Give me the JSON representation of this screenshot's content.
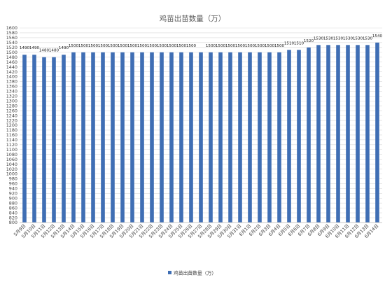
{
  "chart_data": {
    "type": "bar",
    "title": "鸡苗出苗数量（万）",
    "xlabel": "",
    "ylabel": "",
    "ylim": [
      800,
      1600
    ],
    "ytick_step": 20,
    "grid": true,
    "legend_position": "bottom",
    "categories": [
      "5月9日",
      "5月10日",
      "5月11日",
      "5月12日",
      "5月13日",
      "5月14日",
      "5月15日",
      "5月16日",
      "5月17日",
      "5月18日",
      "5月19日",
      "5月20日",
      "5月21日",
      "5月22日",
      "5月23日",
      "5月24日",
      "5月25日",
      "5月26日",
      "5月27日",
      "5月28日",
      "5月29日",
      "5月30日",
      "5月31日",
      "6月1日",
      "6月2日",
      "6月3日",
      "6月4日",
      "6月5日",
      "6月6日",
      "6月7日",
      "6月8日",
      "6月9日",
      "6月10日",
      "6月11日",
      "6月12日",
      "6月13日",
      "6月14日"
    ],
    "series": [
      {
        "name": "鸡苗出苗数量（万）",
        "color": "#3f6eb4",
        "values": [
          1490,
          1490,
          1480,
          1480,
          1490,
          1500,
          1500,
          1500,
          1500,
          1500,
          1500,
          1500,
          1500,
          1500,
          1500,
          1500,
          1500,
          1500,
          1500,
          1500,
          1500,
          1500,
          1500,
          1500,
          1500,
          1500,
          1500,
          1510,
          1510,
          1520,
          1530,
          1530,
          1530,
          1530,
          1530,
          1530,
          1540
        ]
      }
    ],
    "data_labels": [
      "1490",
      "1490",
      "1480",
      "1480",
      "1490",
      "1500",
      "1500",
      "1500",
      "1500",
      "1500",
      "1500",
      "1500",
      "1500",
      "1500",
      "1500",
      "1500",
      "1500",
      "1500",
      "",
      "1500",
      "1500",
      "1500",
      "1500",
      "1500",
      "1500",
      "1500",
      "1500",
      "1510",
      "1510",
      "1520",
      "1530",
      "1530",
      "1530",
      "1530",
      "1530",
      "1530",
      "1540"
    ]
  }
}
